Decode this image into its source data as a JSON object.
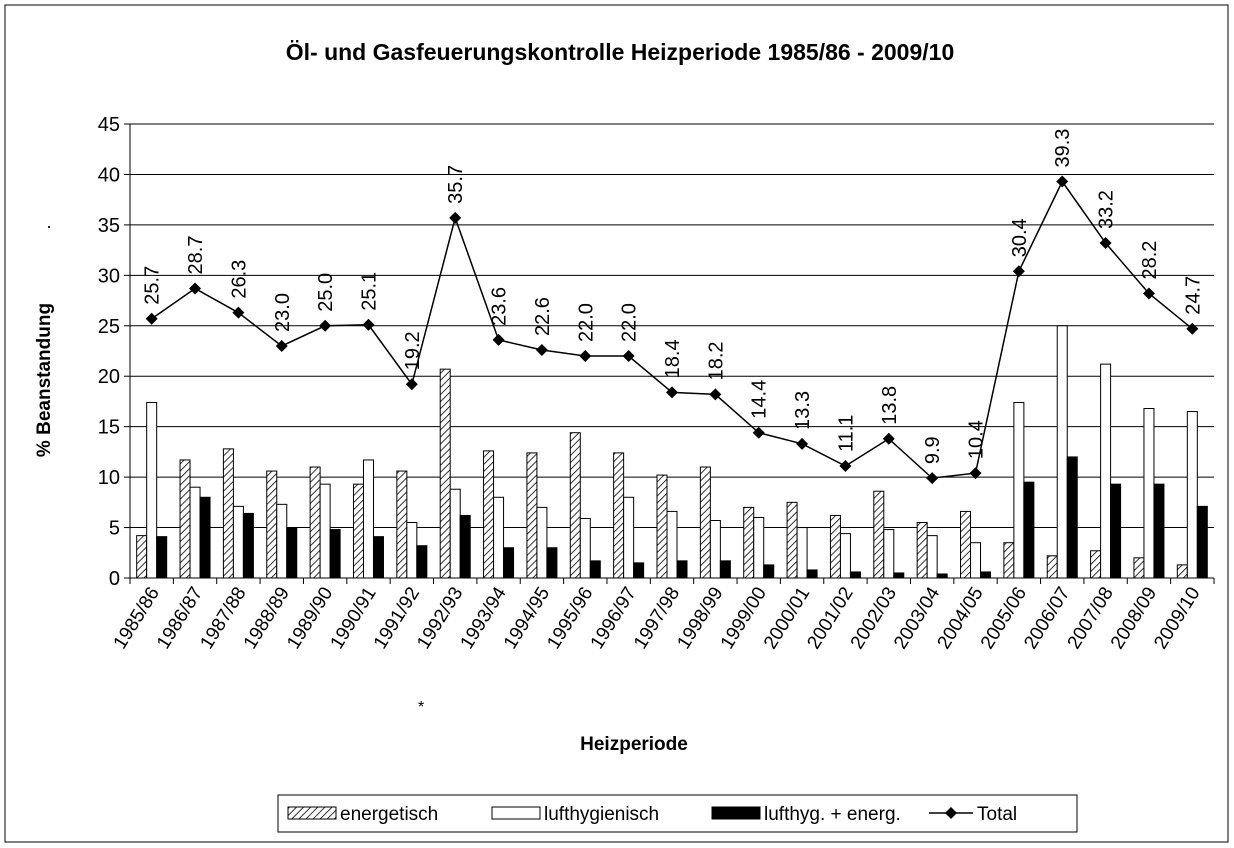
{
  "chart_data": {
    "type": "bar_line",
    "title": "Öl- und Gasfeuerungskontrolle Heizperiode 1985/86 - 2009/10",
    "x_label": "Heizperiode",
    "y_label": "% Beanstandung",
    "annotations": [
      "·",
      "*"
    ],
    "categories": [
      "1985/86",
      "1986/87",
      "1987/88",
      "1988/89",
      "1989/90",
      "1990/91",
      "1991/92",
      "1992/93",
      "1993/94",
      "1994/95",
      "1995/96",
      "1996/97",
      "1997/98",
      "1998/99",
      "1999/00",
      "2000/01",
      "2001/02",
      "2002/03",
      "2003/04",
      "2004/05",
      "2005/06",
      "2006/07",
      "2007/08",
      "2008/09",
      "2009/10"
    ],
    "ylim": [
      0,
      45
    ],
    "yticks": [
      0,
      5,
      10,
      15,
      20,
      25,
      30,
      35,
      40,
      45
    ],
    "grid": true,
    "legend": "bottom",
    "series": [
      {
        "name": "energetisch",
        "type": "bar",
        "color": "#ffffff",
        "hatch": true,
        "values": [
          4.2,
          11.7,
          12.8,
          10.6,
          11.0,
          9.3,
          10.6,
          20.7,
          12.6,
          12.4,
          14.4,
          12.4,
          10.2,
          11.0,
          7.0,
          7.5,
          6.2,
          8.6,
          5.5,
          6.6,
          3.5,
          2.2,
          2.7,
          2.0,
          1.3
        ]
      },
      {
        "name": "lufthygienisch",
        "type": "bar",
        "color": "#ffffff",
        "values": [
          17.4,
          9.0,
          7.1,
          7.3,
          9.3,
          11.7,
          5.5,
          8.8,
          8.0,
          7.0,
          5.9,
          8.0,
          6.6,
          5.7,
          6.0,
          5.0,
          4.4,
          4.8,
          4.2,
          3.5,
          17.4,
          25.0,
          21.2,
          16.8,
          16.5
        ]
      },
      {
        "name": "lufthyg. + energ.",
        "type": "bar",
        "color": "#000000",
        "values": [
          4.1,
          8.0,
          6.4,
          5.0,
          4.8,
          4.1,
          3.2,
          6.2,
          3.0,
          3.0,
          1.7,
          1.5,
          1.7,
          1.7,
          1.3,
          0.8,
          0.6,
          0.5,
          0.4,
          0.6,
          9.5,
          12.0,
          9.3,
          9.3,
          7.1
        ]
      },
      {
        "name": "Total",
        "type": "line",
        "color": "#000000",
        "values": [
          25.7,
          28.7,
          26.3,
          23.0,
          25.0,
          25.1,
          19.2,
          35.7,
          23.6,
          22.6,
          22.0,
          22.0,
          18.4,
          18.2,
          14.4,
          13.3,
          11.1,
          13.8,
          9.9,
          10.4,
          30.4,
          39.3,
          33.2,
          28.2,
          24.7
        ],
        "value_labels": [
          "25.7",
          "28.7",
          "26.3",
          "23.0",
          "25.0",
          "25.1",
          "19.2",
          "35.7",
          "23.6",
          "22.6",
          "22.0",
          "22.0",
          "18.4",
          "18.2",
          "14.4",
          "13.3",
          "11.1",
          "13.8",
          "9.9",
          "10.4",
          "30.4",
          "39.3",
          "33.2",
          "28.2",
          "24.7"
        ]
      }
    ]
  }
}
